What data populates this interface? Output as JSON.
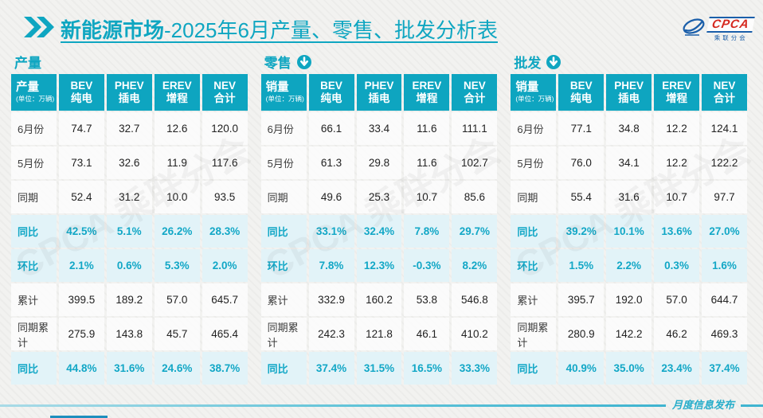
{
  "page": {
    "title_brand": "新能源市场",
    "title_rest": "-2025年6月产量、零售、批发分析表"
  },
  "logo": {
    "text": "CPCA",
    "subtext": "乘联分会"
  },
  "footer": {
    "label": "月度信息发布"
  },
  "watermark": "CPCA 乘联分会",
  "colors": {
    "accent_teal": "#0FA6C1",
    "highlight_text": "#12A7C6",
    "highlight_row_bg": "#E2F3F8",
    "logo_red": "#D5281E",
    "logo_blue": "#1B5FAA",
    "footer_progress": "#1E8FBE"
  },
  "chart_data": [
    {
      "type": "table",
      "title": "产量",
      "arrow_icon": false,
      "corner_label": "产量",
      "unit": "(单位：万辆)",
      "columns": [
        {
          "line1": "BEV",
          "line2": "纯电"
        },
        {
          "line1": "PHEV",
          "line2": "插电"
        },
        {
          "line1": "EREV",
          "line2": "增程"
        },
        {
          "line1": "NEV",
          "line2": "合计"
        }
      ],
      "rows": [
        {
          "label": "6月份",
          "values": [
            "74.7",
            "32.7",
            "12.6",
            "120.0"
          ],
          "highlight": false
        },
        {
          "label": "5月份",
          "values": [
            "73.1",
            "32.6",
            "11.9",
            "117.6"
          ],
          "highlight": false
        },
        {
          "label": "同期",
          "values": [
            "52.4",
            "31.2",
            "10.0",
            "93.5"
          ],
          "highlight": false
        },
        {
          "label": "同比",
          "values": [
            "42.5%",
            "5.1%",
            "26.2%",
            "28.3%"
          ],
          "highlight": true
        },
        {
          "label": "环比",
          "values": [
            "2.1%",
            "0.6%",
            "5.3%",
            "2.0%"
          ],
          "highlight": true
        },
        {
          "label": "累计",
          "values": [
            "399.5",
            "189.2",
            "57.0",
            "645.7"
          ],
          "highlight": false
        },
        {
          "label": "同期累计",
          "values": [
            "275.9",
            "143.8",
            "45.7",
            "465.4"
          ],
          "highlight": false
        },
        {
          "label": "同比",
          "values": [
            "44.8%",
            "31.6%",
            "24.6%",
            "38.7%"
          ],
          "highlight": true
        }
      ]
    },
    {
      "type": "table",
      "title": "零售",
      "arrow_icon": true,
      "corner_label": "销量",
      "unit": "(单位：万辆)",
      "columns": [
        {
          "line1": "BEV",
          "line2": "纯电"
        },
        {
          "line1": "PHEV",
          "line2": "插电"
        },
        {
          "line1": "EREV",
          "line2": "增程"
        },
        {
          "line1": "NEV",
          "line2": "合计"
        }
      ],
      "rows": [
        {
          "label": "6月份",
          "values": [
            "66.1",
            "33.4",
            "11.6",
            "111.1"
          ],
          "highlight": false
        },
        {
          "label": "5月份",
          "values": [
            "61.3",
            "29.8",
            "11.6",
            "102.7"
          ],
          "highlight": false
        },
        {
          "label": "同期",
          "values": [
            "49.6",
            "25.3",
            "10.7",
            "85.6"
          ],
          "highlight": false
        },
        {
          "label": "同比",
          "values": [
            "33.1%",
            "32.4%",
            "7.8%",
            "29.7%"
          ],
          "highlight": true
        },
        {
          "label": "环比",
          "values": [
            "7.8%",
            "12.3%",
            "-0.3%",
            "8.2%"
          ],
          "highlight": true
        },
        {
          "label": "累计",
          "values": [
            "332.9",
            "160.2",
            "53.8",
            "546.8"
          ],
          "highlight": false
        },
        {
          "label": "同期累计",
          "values": [
            "242.3",
            "121.8",
            "46.1",
            "410.2"
          ],
          "highlight": false
        },
        {
          "label": "同比",
          "values": [
            "37.4%",
            "31.5%",
            "16.5%",
            "33.3%"
          ],
          "highlight": true
        }
      ]
    },
    {
      "type": "table",
      "title": "批发",
      "arrow_icon": true,
      "corner_label": "销量",
      "unit": "(单位：万辆)",
      "columns": [
        {
          "line1": "BEV",
          "line2": "纯电"
        },
        {
          "line1": "PHEV",
          "line2": "插电"
        },
        {
          "line1": "EREV",
          "line2": "增程"
        },
        {
          "line1": "NEV",
          "line2": "合计"
        }
      ],
      "rows": [
        {
          "label": "6月份",
          "values": [
            "77.1",
            "34.8",
            "12.2",
            "124.1"
          ],
          "highlight": false
        },
        {
          "label": "5月份",
          "values": [
            "76.0",
            "34.1",
            "12.2",
            "122.2"
          ],
          "highlight": false
        },
        {
          "label": "同期",
          "values": [
            "55.4",
            "31.6",
            "10.7",
            "97.7"
          ],
          "highlight": false
        },
        {
          "label": "同比",
          "values": [
            "39.2%",
            "10.1%",
            "13.6%",
            "27.0%"
          ],
          "highlight": true
        },
        {
          "label": "环比",
          "values": [
            "1.5%",
            "2.2%",
            "0.3%",
            "1.6%"
          ],
          "highlight": true
        },
        {
          "label": "累计",
          "values": [
            "395.7",
            "192.0",
            "57.0",
            "644.7"
          ],
          "highlight": false
        },
        {
          "label": "同期累计",
          "values": [
            "280.9",
            "142.2",
            "46.2",
            "469.3"
          ],
          "highlight": false
        },
        {
          "label": "同比",
          "values": [
            "40.9%",
            "35.0%",
            "23.4%",
            "37.4%"
          ],
          "highlight": true
        }
      ]
    }
  ]
}
